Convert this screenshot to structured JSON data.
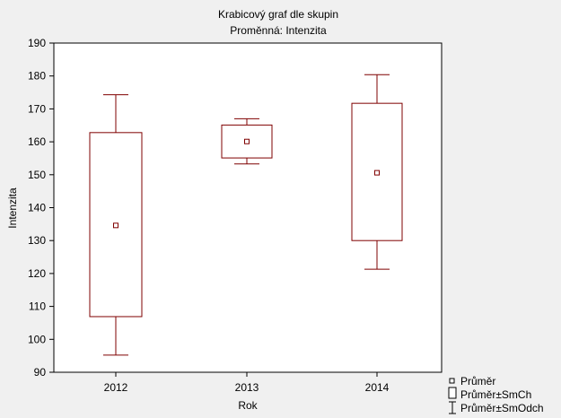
{
  "chart_data": {
    "type": "boxplot",
    "title": "Krabicový graf dle skupin",
    "subtitle": "Proměnná: Intenzita",
    "xlabel": "Rok",
    "ylabel": "Intenzita",
    "ylim": [
      90,
      190
    ],
    "yticks": [
      "90",
      "100",
      "110",
      "120",
      "130",
      "140",
      "150",
      "160",
      "170",
      "180",
      "190"
    ],
    "categories": [
      "2012",
      "2013",
      "2014"
    ],
    "groups": [
      {
        "name": "2012",
        "mean": 134.6,
        "se_low": 106.9,
        "se_high": 162.8,
        "sd_low": 95.2,
        "sd_high": 174.3
      },
      {
        "name": "2013",
        "mean": 160.1,
        "se_low": 155.1,
        "se_high": 165.1,
        "sd_low": 153.3,
        "sd_high": 167.0
      },
      {
        "name": "2014",
        "mean": 150.6,
        "se_low": 130.0,
        "se_high": 171.7,
        "sd_low": 121.3,
        "sd_high": 180.4
      }
    ],
    "legend": {
      "position": "bottom-right",
      "items": [
        {
          "name": "mean",
          "label": "Průměr"
        },
        {
          "name": "se-box",
          "label": "Průměr±SmCh"
        },
        {
          "name": "sd-whisker",
          "label": "Průměr±SmOdch"
        }
      ]
    },
    "colors": {
      "series": "#7f0000",
      "plot_background": "#ffffff",
      "page_background": "#f0f0f0"
    }
  }
}
